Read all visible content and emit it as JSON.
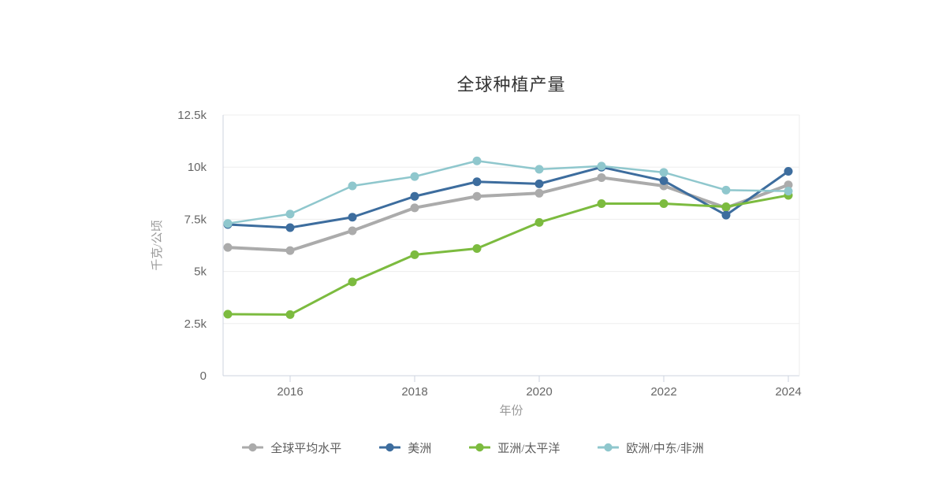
{
  "page": {
    "background": "#ffffff",
    "title_color": "#333333"
  },
  "chart_data": {
    "type": "line",
    "title": "全球种植产量",
    "xlabel": "年份",
    "ylabel": "千克/公顷",
    "x": [
      2015,
      2016,
      2017,
      2018,
      2019,
      2020,
      2021,
      2022,
      2023,
      2024
    ],
    "x_tick_years": [
      2016,
      2018,
      2020,
      2022,
      2024
    ],
    "x_tick_labels": [
      "2016",
      "2018",
      "2020",
      "2022",
      "2024"
    ],
    "y_tick_values": [
      0,
      2500,
      5000,
      7500,
      10000,
      12500
    ],
    "y_tick_labels": [
      "0",
      "2.5k",
      "5k",
      "7.5k",
      "10k",
      "12.5k"
    ],
    "ylim": [
      0,
      12500
    ],
    "grid": true,
    "legend_position": "bottom",
    "axis_colors": {
      "axis_line": "#ccd3df",
      "grid_line": "#ededed",
      "tick_label": "#666666",
      "axis_name": "#999999"
    },
    "series": [
      {
        "name": "全球平均水平",
        "color": "#ABABAB",
        "line_width": 4,
        "values": [
          6150,
          6000,
          6950,
          8050,
          8600,
          8750,
          9500,
          9100,
          8050,
          9150
        ]
      },
      {
        "name": "美洲",
        "color": "#3D6D9E",
        "line_width": 3,
        "values": [
          7250,
          7100,
          7600,
          8600,
          9300,
          9200,
          10000,
          9350,
          7700,
          9800
        ]
      },
      {
        "name": "亚洲/太平洋",
        "color": "#7CBB3F",
        "line_width": 3,
        "values": [
          2950,
          2930,
          4500,
          5800,
          6100,
          7350,
          8250,
          8250,
          8100,
          8650
        ]
      },
      {
        "name": "欧洲/中东/非洲",
        "color": "#8FC7CD",
        "line_width": 2.5,
        "values": [
          7300,
          7750,
          9100,
          9550,
          10300,
          9900,
          10050,
          9750,
          8900,
          8850
        ]
      }
    ]
  }
}
